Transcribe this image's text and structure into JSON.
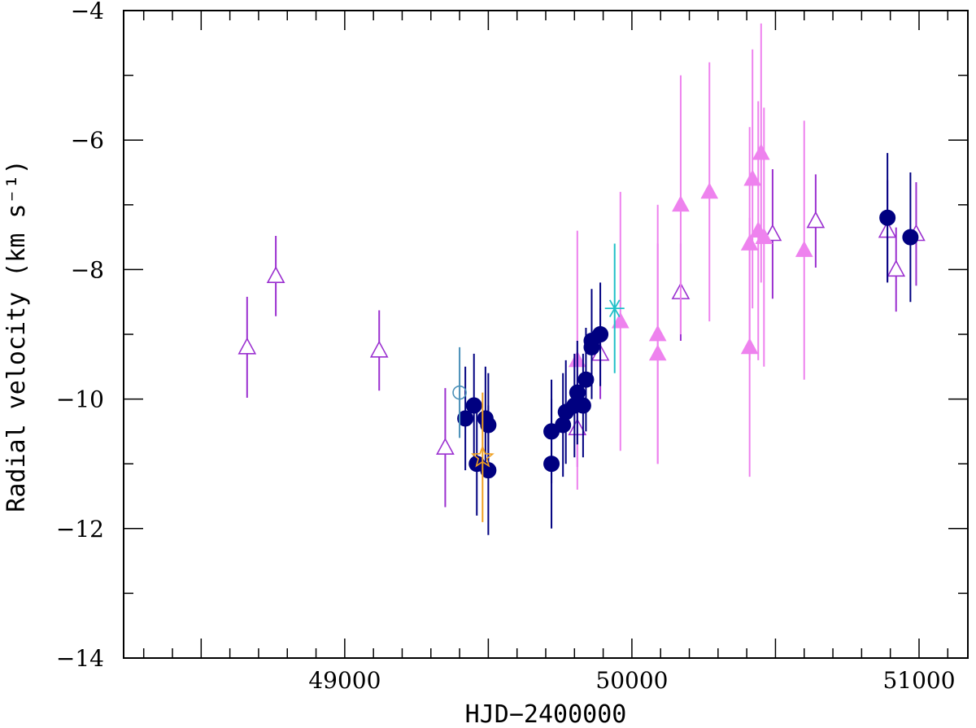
{
  "chart_data": {
    "type": "scatter",
    "xlabel": "HJD−2400000",
    "ylabel": "Radial velocity (km s⁻¹)",
    "xlim": [
      48230,
      51170
    ],
    "ylim": [
      -14,
      -4
    ],
    "y_inverted": true,
    "x_ticks": [
      49000,
      50000,
      51000
    ],
    "y_ticks": [
      -4,
      -6,
      -8,
      -10,
      -12,
      -14
    ],
    "grid": false,
    "series": [
      {
        "marker": "open-triangle",
        "color": "#9b30d0",
        "points": [
          {
            "x": 48660,
            "y": -9.2,
            "err": 0.78
          },
          {
            "x": 48760,
            "y": -8.1,
            "err": 0.62
          },
          {
            "x": 49120,
            "y": -9.25,
            "err": 0.62
          },
          {
            "x": 49350,
            "y": -10.75,
            "err": 0.92
          },
          {
            "x": 49810,
            "y": -10.45,
            "err": 0.6
          },
          {
            "x": 49890,
            "y": -9.3,
            "err": 0.7
          },
          {
            "x": 50170,
            "y": -8.35,
            "err": 0.75
          },
          {
            "x": 50490,
            "y": -7.45,
            "err": 1.0
          },
          {
            "x": 50640,
            "y": -7.25,
            "err": 0.72
          },
          {
            "x": 50890,
            "y": -7.4,
            "err": 0.78
          },
          {
            "x": 50920,
            "y": -8.0,
            "err": 0.65
          },
          {
            "x": 50990,
            "y": -7.45,
            "err": 0.8
          }
        ]
      },
      {
        "marker": "filled-triangle",
        "color": "#ee82ee",
        "points": [
          {
            "x": 49810,
            "y": -9.4,
            "err": 2.0
          },
          {
            "x": 49960,
            "y": -8.8,
            "err": 2.0
          },
          {
            "x": 50090,
            "y": -9.0,
            "err": 2.0
          },
          {
            "x": 50090,
            "y": -9.3,
            "err": 1.7
          },
          {
            "x": 50170,
            "y": -7.0,
            "err": 2.0
          },
          {
            "x": 50270,
            "y": -6.8,
            "err": 2.0
          },
          {
            "x": 50410,
            "y": -9.2,
            "err": 2.0
          },
          {
            "x": 50410,
            "y": -7.6,
            "err": 1.8
          },
          {
            "x": 50420,
            "y": -6.6,
            "err": 2.0
          },
          {
            "x": 50440,
            "y": -7.4,
            "err": 2.0
          },
          {
            "x": 50450,
            "y": -6.2,
            "err": 2.0
          },
          {
            "x": 50460,
            "y": -7.5,
            "err": 2.0
          },
          {
            "x": 50600,
            "y": -7.7,
            "err": 2.0
          }
        ]
      },
      {
        "marker": "filled-circle",
        "color": "#000080",
        "points": [
          {
            "x": 49420,
            "y": -10.3,
            "err": 0.8
          },
          {
            "x": 49450,
            "y": -10.1,
            "err": 0.8
          },
          {
            "x": 49460,
            "y": -11.0,
            "err": 0.8
          },
          {
            "x": 49490,
            "y": -10.3,
            "err": 0.8
          },
          {
            "x": 49500,
            "y": -10.4,
            "err": 0.8
          },
          {
            "x": 49500,
            "y": -11.1,
            "err": 1.0
          },
          {
            "x": 49720,
            "y": -10.5,
            "err": 0.8
          },
          {
            "x": 49720,
            "y": -11.0,
            "err": 1.0
          },
          {
            "x": 49760,
            "y": -10.4,
            "err": 0.8
          },
          {
            "x": 49770,
            "y": -10.2,
            "err": 0.8
          },
          {
            "x": 49800,
            "y": -10.1,
            "err": 0.8
          },
          {
            "x": 49810,
            "y": -9.9,
            "err": 0.8
          },
          {
            "x": 49830,
            "y": -10.1,
            "err": 0.8
          },
          {
            "x": 49840,
            "y": -9.7,
            "err": 0.8
          },
          {
            "x": 49860,
            "y": -9.1,
            "err": 0.8
          },
          {
            "x": 49860,
            "y": -9.2,
            "err": 0.8
          },
          {
            "x": 49890,
            "y": -9.0,
            "err": 0.8
          },
          {
            "x": 50890,
            "y": -7.2,
            "err": 1.0
          },
          {
            "x": 50970,
            "y": -7.5,
            "err": 1.0
          }
        ]
      },
      {
        "marker": "open-circle",
        "color": "#4a90b8",
        "points": [
          {
            "x": 49400,
            "y": -9.9,
            "err": 0.7
          }
        ]
      },
      {
        "marker": "open-star",
        "color": "#f0a020",
        "points": [
          {
            "x": 49480,
            "y": -10.9,
            "err": 1.0
          }
        ]
      },
      {
        "marker": "asterisk",
        "color": "#20c0c8",
        "points": [
          {
            "x": 49940,
            "y": -8.6,
            "err": 1.0
          }
        ]
      }
    ]
  }
}
